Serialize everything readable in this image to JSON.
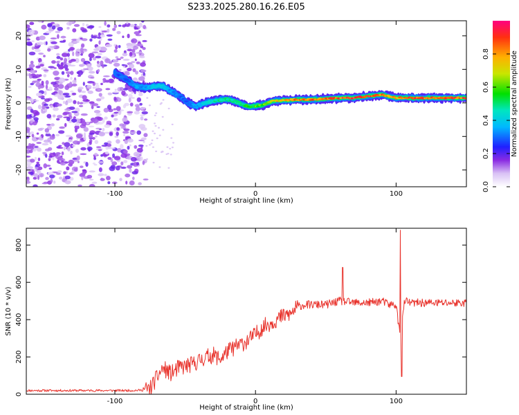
{
  "title": "S233.2025.280.16.26.E05",
  "chart_data": [
    {
      "type": "heatmap",
      "xlabel": "Height of straight line (km)",
      "ylabel": "Frequency (Hz)",
      "xlim": [
        -163,
        150
      ],
      "ylim": [
        -25,
        24.5
      ],
      "xticks": [
        -100,
        0,
        100
      ],
      "xtick_labels": [
        "-100",
        "0",
        "100"
      ],
      "yticks": [
        -20,
        -10,
        0,
        10,
        20
      ],
      "ytick_labels": [
        "-20",
        "-10",
        "0",
        "10",
        "20"
      ],
      "noise_region_x": [
        -163,
        -78
      ],
      "ridge": {
        "x": [
          -100,
          -92,
          -85,
          -78,
          -72,
          -66,
          -60,
          -54,
          -48,
          -42,
          -36,
          -30,
          -24,
          -18,
          -12,
          -6,
          0,
          6,
          12,
          20,
          30,
          40,
          50,
          60,
          70,
          80,
          90,
          100,
          110,
          120,
          135,
          150
        ],
        "freq": [
          9,
          7,
          5,
          4.5,
          5,
          5,
          3.5,
          2,
          0,
          -1,
          0,
          0.5,
          1,
          1,
          0,
          -1,
          -1,
          -0.5,
          0.5,
          0.8,
          1,
          1,
          1.2,
          1.5,
          1.5,
          2,
          2.5,
          1.5,
          1.5,
          1.5,
          1.5,
          1.5
        ],
        "amplitude": [
          0.3,
          0.3,
          0.35,
          0.35,
          0.4,
          0.4,
          0.35,
          0.3,
          0.3,
          0.35,
          0.4,
          0.45,
          0.5,
          0.5,
          0.5,
          0.55,
          0.6,
          0.65,
          0.7,
          0.8,
          0.8,
          0.85,
          0.85,
          0.9,
          0.9,
          0.9,
          0.85,
          0.8,
          0.85,
          0.9,
          0.9,
          0.9
        ]
      },
      "colorbar": {
        "label": "Normalized spectral amplitude",
        "range": [
          0,
          1
        ],
        "ticks": [
          0.0,
          0.2,
          0.4,
          0.6,
          0.8
        ],
        "tick_labels": [
          "0.0",
          "0.2",
          "0.4",
          "0.6",
          "0.8"
        ]
      }
    },
    {
      "type": "line",
      "xlabel": "Height of straight line (km)",
      "ylabel": "SNR (10 * v/v)",
      "xlim": [
        -163,
        150
      ],
      "ylim": [
        0,
        890
      ],
      "xticks": [
        -100,
        0,
        100
      ],
      "xtick_labels": [
        "-100",
        "0",
        "100"
      ],
      "yticks": [
        0,
        200,
        400,
        600,
        800
      ],
      "ytick_labels": [
        "0",
        "200",
        "400",
        "600",
        "800"
      ],
      "series": [
        {
          "name": "SNR",
          "color": "#e8312a",
          "x": [
            -163,
            -140,
            -120,
            -100,
            -90,
            -80,
            -75,
            -70,
            -66,
            -60,
            -55,
            -50,
            -45,
            -40,
            -35,
            -30,
            -25,
            -20,
            -15,
            -10,
            -5,
            0,
            5,
            10,
            15,
            20,
            25,
            30,
            35,
            40,
            50,
            60,
            70,
            80,
            90,
            95,
            100,
            103,
            106,
            110,
            120,
            130,
            140,
            150
          ],
          "y": [
            20,
            20,
            20,
            20,
            20,
            22,
            30,
            90,
            140,
            110,
            140,
            150,
            160,
            180,
            200,
            210,
            190,
            230,
            250,
            270,
            290,
            320,
            360,
            380,
            400,
            420,
            430,
            470,
            480,
            480,
            480,
            500,
            490,
            490,
            500,
            480,
            480,
            300,
            500,
            490,
            490,
            490,
            490,
            490
          ]
        }
      ],
      "spikes": [
        {
          "x": 62,
          "y": 680
        },
        {
          "x": 103,
          "y": 880
        },
        {
          "x": 104,
          "y": 95
        }
      ]
    }
  ]
}
